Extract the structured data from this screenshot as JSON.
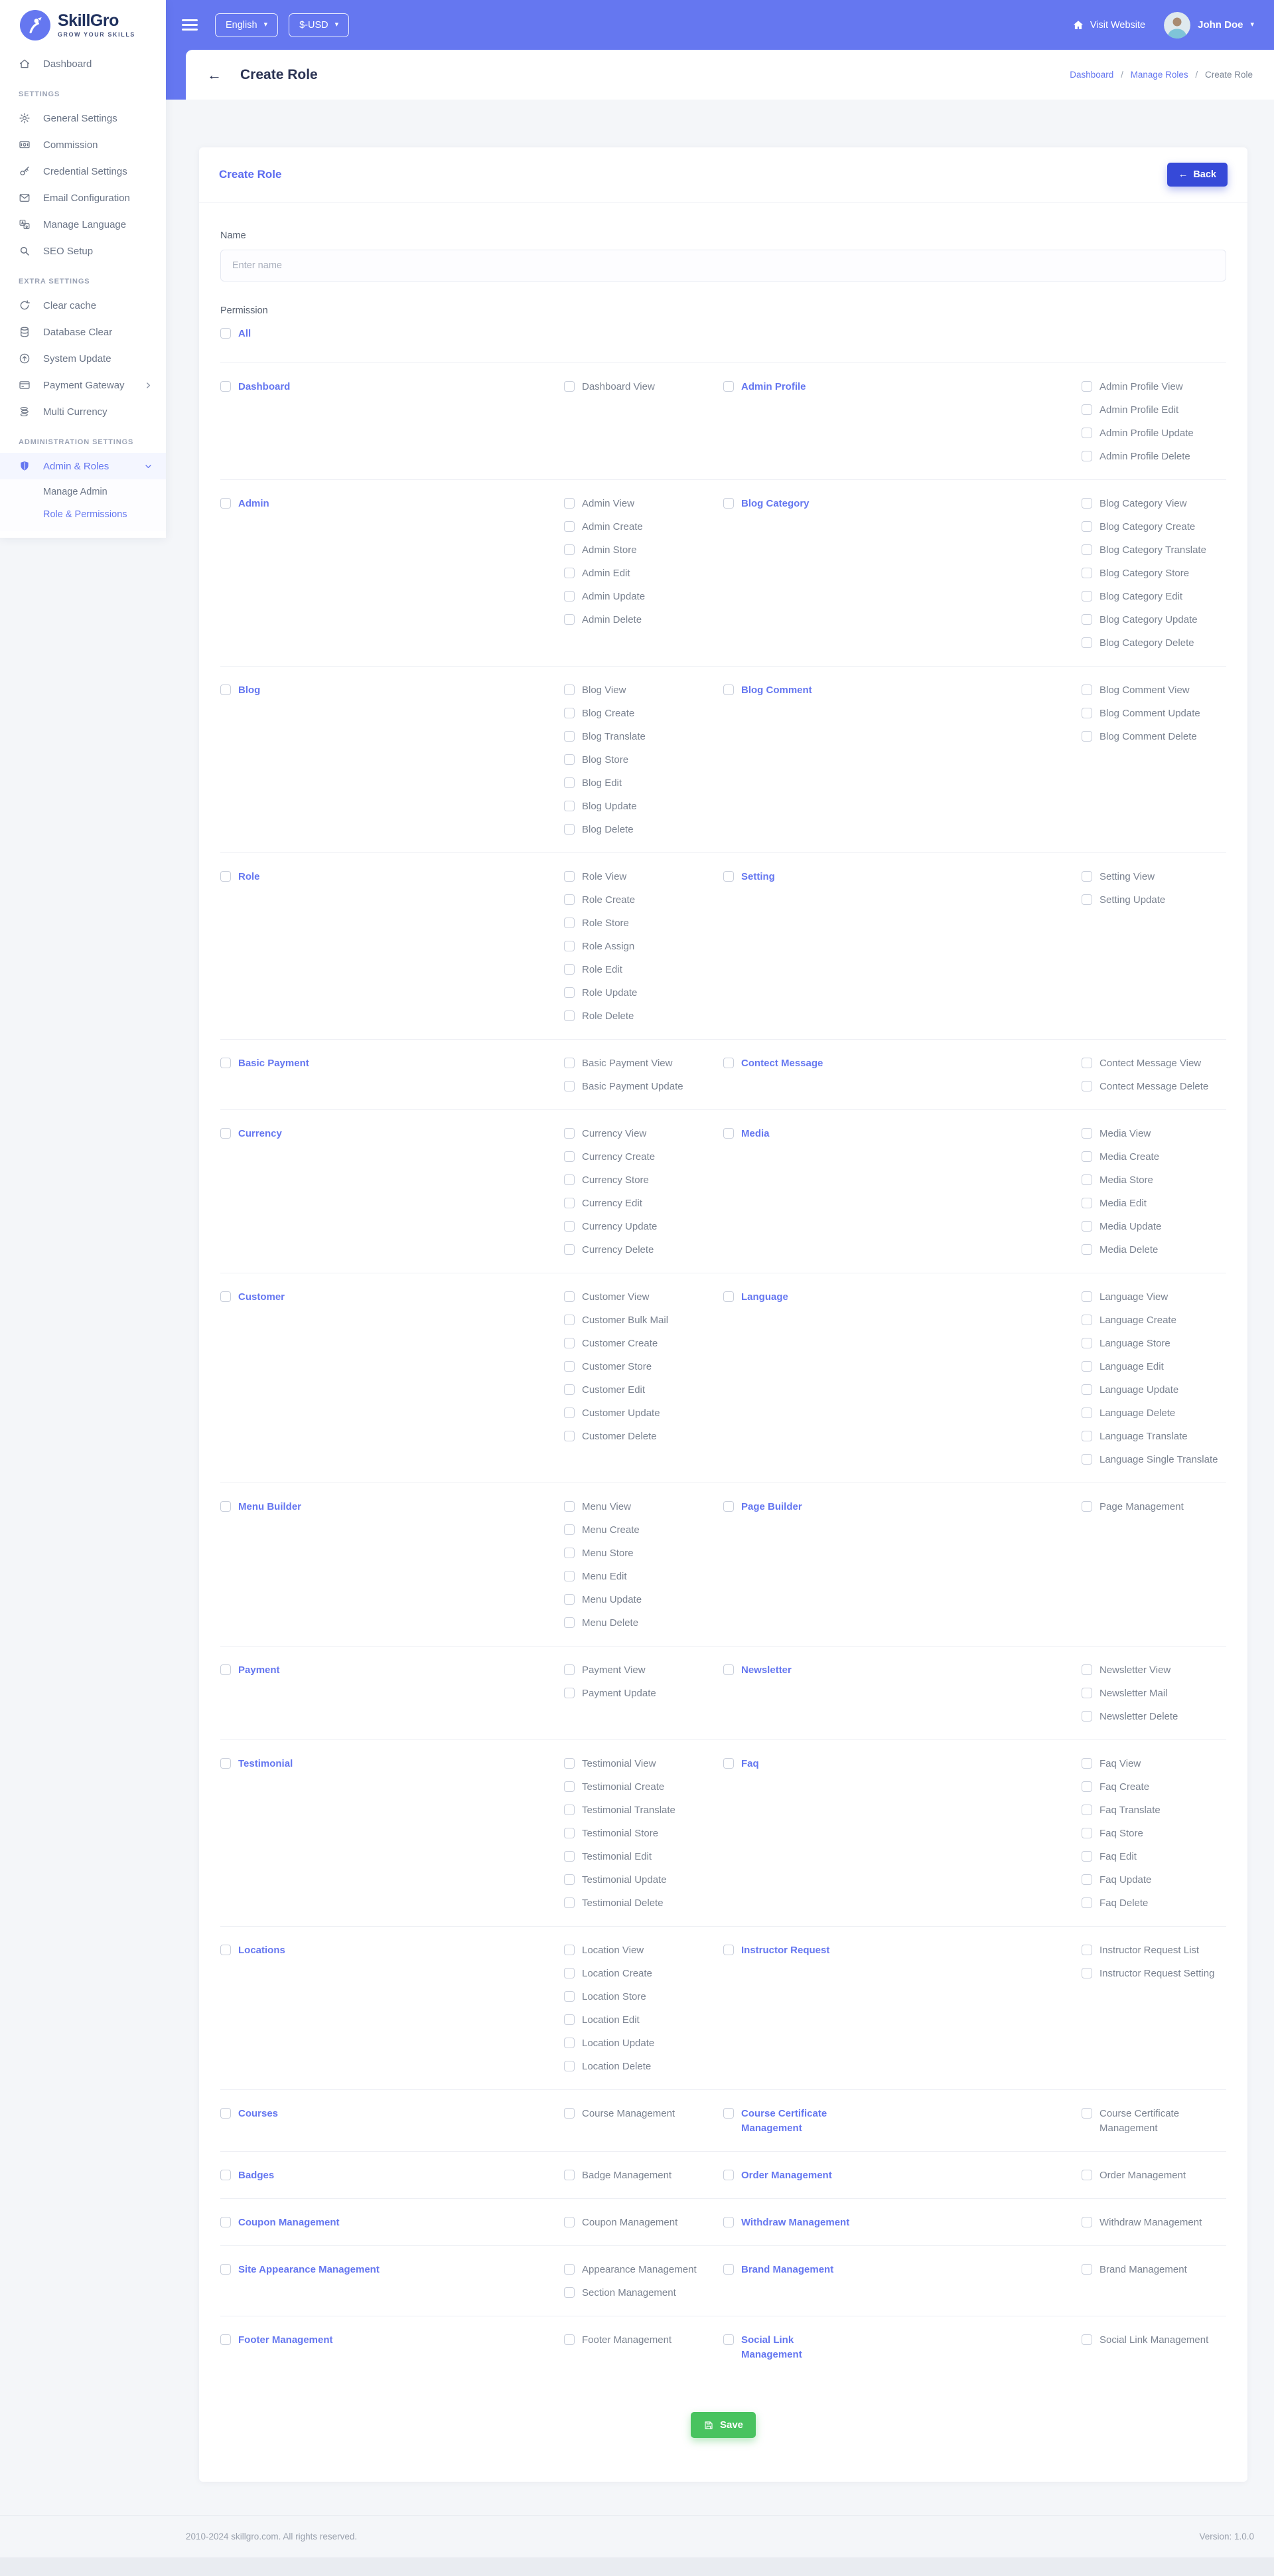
{
  "brand": {
    "name": "SkillGro",
    "tagline": "GROW YOUR SKILLS"
  },
  "topbar": {
    "language": "English",
    "currency": "$-USD",
    "visit_website": "Visit Website",
    "user_name": "John Doe"
  },
  "titlebar": {
    "title": "Create Role",
    "breadcrumb": [
      "Dashboard",
      "Manage Roles",
      "Create Role"
    ]
  },
  "sidebar": {
    "sections": [
      {
        "header": "",
        "items": [
          {
            "icon": "home-icon",
            "label": "Dashboard"
          }
        ]
      },
      {
        "header": "SETTINGS",
        "items": [
          {
            "icon": "gear-icon",
            "label": "General Settings"
          },
          {
            "icon": "banknote-icon",
            "label": "Commission"
          },
          {
            "icon": "key-icon",
            "label": "Credential Settings"
          },
          {
            "icon": "envelope-icon",
            "label": "Email Configuration"
          },
          {
            "icon": "translate-icon",
            "label": "Manage Language"
          },
          {
            "icon": "search-icon",
            "label": "SEO Setup"
          }
        ]
      },
      {
        "header": "EXTRA SETTINGS",
        "items": [
          {
            "icon": "refresh-icon",
            "label": "Clear cache"
          },
          {
            "icon": "database-icon",
            "label": "Database Clear"
          },
          {
            "icon": "upload-icon",
            "label": "System Update"
          },
          {
            "icon": "card-icon",
            "label": "Payment Gateway",
            "chevron": "right"
          },
          {
            "icon": "coins-icon",
            "label": "Multi Currency"
          }
        ]
      },
      {
        "header": "ADMINISTRATION SETTINGS",
        "items": [
          {
            "icon": "shield-icon",
            "label": "Admin & Roles",
            "chevron": "down",
            "active": true,
            "children": [
              {
                "label": "Manage Admin",
                "active": false
              },
              {
                "label": "Role & Permissions",
                "active": true
              }
            ]
          }
        ]
      }
    ]
  },
  "card": {
    "title": "Create Role",
    "back_label": "Back",
    "name_label": "Name",
    "name_placeholder": "Enter name",
    "permission_label": "Permission",
    "all_label": "All",
    "save_label": "Save"
  },
  "permissions": {
    "rows": [
      {
        "groups": [
          {
            "name": "Dashboard",
            "perms": [
              "Dashboard View"
            ]
          },
          {
            "name": "Admin Profile",
            "perms": [
              "Admin Profile View",
              "Admin Profile Edit",
              "Admin Profile Update",
              "Admin Profile Delete"
            ]
          }
        ]
      },
      {
        "groups": [
          {
            "name": "Admin",
            "perms": [
              "Admin View",
              "Admin Create",
              "Admin Store",
              "Admin Edit",
              "Admin Update",
              "Admin Delete"
            ]
          },
          {
            "name": "Blog Category",
            "perms": [
              "Blog Category View",
              "Blog Category Create",
              "Blog Category Translate",
              "Blog Category Store",
              "Blog Category Edit",
              "Blog Category Update",
              "Blog Category Delete"
            ]
          }
        ]
      },
      {
        "groups": [
          {
            "name": "Blog",
            "perms": [
              "Blog View",
              "Blog Create",
              "Blog Translate",
              "Blog Store",
              "Blog Edit",
              "Blog Update",
              "Blog Delete"
            ]
          },
          {
            "name": "Blog Comment",
            "perms": [
              "Blog Comment View",
              "Blog Comment Update",
              "Blog Comment Delete"
            ]
          }
        ]
      },
      {
        "groups": [
          {
            "name": "Role",
            "perms": [
              "Role View",
              "Role Create",
              "Role Store",
              "Role Assign",
              "Role Edit",
              "Role Update",
              "Role Delete"
            ]
          },
          {
            "name": "Setting",
            "perms": [
              "Setting View",
              "Setting Update"
            ]
          }
        ]
      },
      {
        "groups": [
          {
            "name": "Basic Payment",
            "perms": [
              "Basic Payment View",
              "Basic Payment Update"
            ]
          },
          {
            "name": "Contect Message",
            "perms": [
              "Contect Message View",
              "Contect Message Delete"
            ]
          }
        ]
      },
      {
        "groups": [
          {
            "name": "Currency",
            "perms": [
              "Currency View",
              "Currency Create",
              "Currency Store",
              "Currency Edit",
              "Currency Update",
              "Currency Delete"
            ]
          },
          {
            "name": "Media",
            "perms": [
              "Media View",
              "Media Create",
              "Media Store",
              "Media Edit",
              "Media Update",
              "Media Delete"
            ]
          }
        ]
      },
      {
        "groups": [
          {
            "name": "Customer",
            "perms": [
              "Customer View",
              "Customer Bulk Mail",
              "Customer Create",
              "Customer Store",
              "Customer Edit",
              "Customer Update",
              "Customer Delete"
            ]
          },
          {
            "name": "Language",
            "perms": [
              "Language View",
              "Language Create",
              "Language Store",
              "Language Edit",
              "Language Update",
              "Language Delete",
              "Language Translate",
              "Language Single Translate"
            ]
          }
        ]
      },
      {
        "groups": [
          {
            "name": "Menu Builder",
            "perms": [
              "Menu View",
              "Menu Create",
              "Menu Store",
              "Menu Edit",
              "Menu Update",
              "Menu Delete"
            ]
          },
          {
            "name": "Page Builder",
            "perms": [
              "Page Management"
            ]
          }
        ]
      },
      {
        "groups": [
          {
            "name": "Payment",
            "perms": [
              "Payment View",
              "Payment Update"
            ]
          },
          {
            "name": "Newsletter",
            "perms": [
              "Newsletter View",
              "Newsletter Mail",
              "Newsletter Delete"
            ]
          }
        ]
      },
      {
        "groups": [
          {
            "name": "Testimonial",
            "perms": [
              "Testimonial View",
              "Testimonial Create",
              "Testimonial Translate",
              "Testimonial Store",
              "Testimonial Edit",
              "Testimonial Update",
              "Testimonial Delete"
            ]
          },
          {
            "name": "Faq",
            "perms": [
              "Faq View",
              "Faq Create",
              "Faq Translate",
              "Faq Store",
              "Faq Edit",
              "Faq Update",
              "Faq Delete"
            ]
          }
        ]
      },
      {
        "groups": [
          {
            "name": "Locations",
            "perms": [
              "Location View",
              "Location Create",
              "Location Store",
              "Location Edit",
              "Location Update",
              "Location Delete"
            ]
          },
          {
            "name": "Instructor Request",
            "perms": [
              "Instructor Request List",
              "Instructor Request Setting"
            ]
          }
        ]
      },
      {
        "groups": [
          {
            "name": "Courses",
            "perms": [
              "Course Management"
            ]
          },
          {
            "name": "Course Certificate Management",
            "perms": [
              "Course Certificate Management"
            ]
          }
        ]
      },
      {
        "groups": [
          {
            "name": "Badges",
            "perms": [
              "Badge Management"
            ]
          },
          {
            "name": "Order Management",
            "perms": [
              "Order Management"
            ]
          }
        ]
      },
      {
        "groups": [
          {
            "name": "Coupon Management",
            "perms": [
              "Coupon Management"
            ]
          },
          {
            "name": "Withdraw Management",
            "perms": [
              "Withdraw Management"
            ]
          }
        ]
      },
      {
        "groups": [
          {
            "name": "Site Appearance Management",
            "perms": [
              "Appearance Management",
              "Section Management"
            ]
          },
          {
            "name": "Brand Management",
            "perms": [
              "Brand Management"
            ]
          }
        ]
      },
      {
        "groups": [
          {
            "name": "Footer Management",
            "perms": [
              "Footer Management"
            ]
          },
          {
            "name": "Social Link Management",
            "perms": [
              "Social Link Management"
            ]
          }
        ]
      }
    ]
  },
  "footer": {
    "copyright": "2010-2024 skillgro.com. All rights reserved.",
    "version": "Version: 1.0.0"
  },
  "colors": {
    "accent": "#6577f0",
    "back_button": "#3649d8",
    "save_button": "#48c35f",
    "body_bg": "#f4f6f9"
  }
}
